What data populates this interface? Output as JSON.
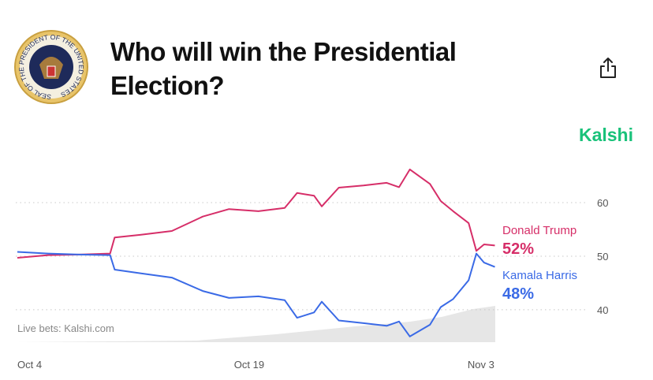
{
  "seal_text": "SEAL OF THE PRESIDENT OF THE UNITED STATES",
  "brand": "Kalshi",
  "chart_data": {
    "type": "line",
    "title": [
      "Who will win the Presidential",
      "Election?"
    ],
    "note": "Live bets: Kalshi.com",
    "x": [
      0,
      2,
      4,
      6,
      6.3,
      8,
      10,
      12,
      13.7,
      15.6,
      17.3,
      18.1,
      19.2,
      19.7,
      20.8,
      22.4,
      23.9,
      24.7,
      25.4,
      26.7,
      27.4,
      28.2,
      29.2,
      29.7,
      30.2,
      30.9
    ],
    "series": [
      {
        "name": "Donald Trump",
        "color": "#d62e68",
        "values": [
          49.7,
          50.2,
          50.3,
          50.5,
          53.5,
          54,
          54.7,
          57.4,
          58.8,
          58.4,
          59,
          61.8,
          61.3,
          59.3,
          62.8,
          63.2,
          63.7,
          62.9,
          66.2,
          63.5,
          60.3,
          58.4,
          56.2,
          51,
          52.2,
          52
        ],
        "current": 52,
        "current_label": "52%"
      },
      {
        "name": "Kamala Harris",
        "color": "#3a6ae6",
        "values": [
          50.8,
          50.5,
          50.3,
          50.2,
          47.5,
          46.8,
          46,
          43.5,
          42.2,
          42.5,
          41.8,
          38.5,
          39.5,
          41.5,
          38,
          37.5,
          37,
          37.8,
          35,
          37.2,
          40.5,
          42,
          45.5,
          50.5,
          48.8,
          48
        ],
        "current": 48,
        "current_label": "48%"
      }
    ],
    "xlim": [
      0,
      37
    ],
    "xticks": [
      {
        "value": 0,
        "label": "Oct 4"
      },
      {
        "value": 15,
        "label": "Oct 19"
      },
      {
        "value": 30,
        "label": "Nov 3"
      }
    ],
    "ylim": [
      33.8,
      68.4
    ],
    "yticks": [
      40,
      50,
      60
    ],
    "grid": true
  }
}
